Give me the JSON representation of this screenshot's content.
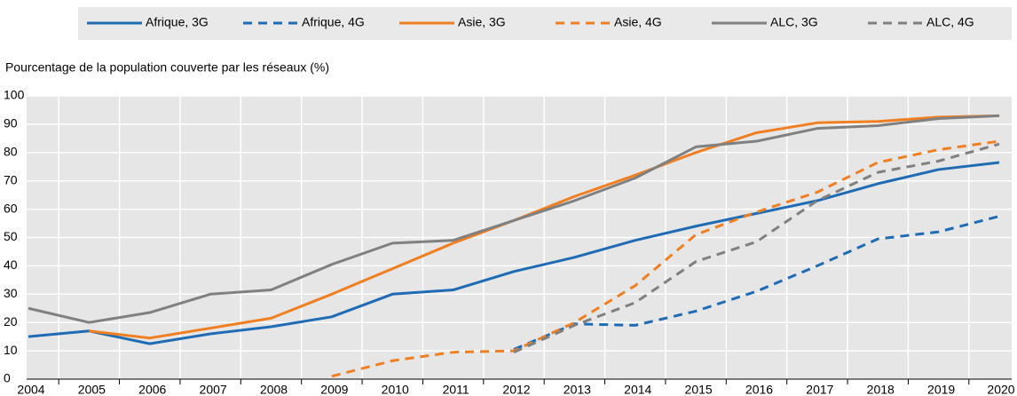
{
  "chart_data": {
    "type": "line",
    "y_label": "Pourcentage de la population couverte par les réseaux (%)",
    "categories": [
      "2004",
      "2005",
      "2006",
      "2007",
      "2008",
      "2009",
      "2010",
      "2011",
      "2012",
      "2013",
      "2014",
      "2015",
      "2016",
      "2017",
      "2018",
      "2019",
      "2020"
    ],
    "series": [
      {
        "name": "Afrique, 3G",
        "color": "#1f6bb4",
        "dashed": false,
        "values": [
          15,
          17,
          12.5,
          16,
          18.5,
          22,
          30,
          31.5,
          38,
          43,
          49,
          54,
          58.5,
          63,
          69,
          74,
          76.5
        ]
      },
      {
        "name": "Afrique, 4G",
        "color": "#1f6bb4",
        "dashed": true,
        "values": [
          null,
          null,
          null,
          null,
          null,
          null,
          null,
          null,
          10.5,
          19.5,
          19,
          24,
          31,
          40,
          49.5,
          52,
          57.5
        ]
      },
      {
        "name": "Asie, 3G",
        "color": "#f07f22",
        "dashed": false,
        "values": [
          null,
          17,
          14.5,
          18,
          21.5,
          30,
          39,
          48,
          56,
          64.5,
          72,
          80,
          87,
          90.5,
          91,
          92.5,
          93
        ]
      },
      {
        "name": "Asie, 4G",
        "color": "#f07f22",
        "dashed": true,
        "values": [
          null,
          null,
          null,
          null,
          null,
          1,
          6.5,
          9.5,
          10,
          20,
          33,
          51,
          59,
          66,
          76.5,
          81,
          84
        ]
      },
      {
        "name": "ALC, 3G",
        "color": "#808080",
        "dashed": false,
        "values": [
          25,
          20,
          23.5,
          30,
          31.5,
          40.5,
          48,
          49,
          56,
          63,
          71,
          82,
          84,
          88.5,
          89.5,
          92,
          93
        ]
      },
      {
        "name": "ALC, 4G",
        "color": "#808080",
        "dashed": true,
        "values": [
          null,
          null,
          null,
          null,
          null,
          null,
          null,
          null,
          9.5,
          19,
          27,
          41.5,
          48.5,
          63,
          73,
          77,
          83
        ]
      }
    ],
    "ylim": [
      0,
      100
    ],
    "yticks": [
      0,
      10,
      20,
      30,
      40,
      50,
      60,
      70,
      80,
      90,
      100
    ],
    "grid": true,
    "legend": "top"
  }
}
